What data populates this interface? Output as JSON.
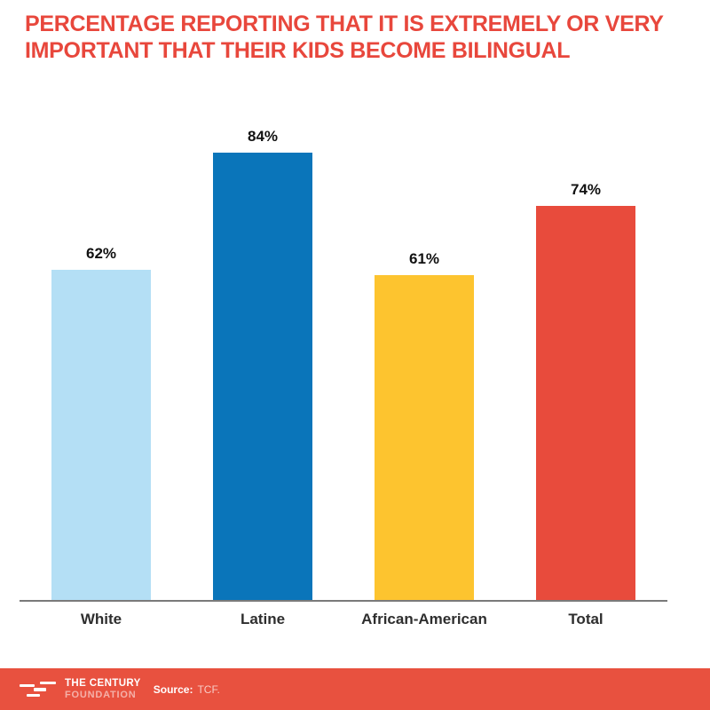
{
  "title": "PERCENTAGE REPORTING THAT IT IS EXTREMELY OR VERY IMPORTANT THAT THEIR KIDS BECOME BILINGUAL",
  "colors": {
    "title_red": "#e8473c",
    "axis_line": "#7a7a7a",
    "label_dark": "#2e2e2e",
    "footer_bg": "#e8513f",
    "bar_white": "#b4dff5",
    "bar_latine": "#0a75ba",
    "bar_african_american": "#fdc42f",
    "bar_total": "#e84b3c"
  },
  "chart_data": {
    "type": "bar",
    "title": "PERCENTAGE REPORTING THAT IT IS EXTREMELY OR VERY IMPORTANT THAT THEIR KIDS BECOME BILINGUAL",
    "categories": [
      "White",
      "Latine",
      "African-American",
      "Total"
    ],
    "values": [
      62,
      84,
      61,
      74
    ],
    "value_labels": [
      "62%",
      "84%",
      "61%",
      "74%"
    ],
    "bar_colors": [
      "#b4dff5",
      "#0a75ba",
      "#fdc42f",
      "#e84b3c"
    ],
    "xlabel": "",
    "ylabel": "",
    "ylim": [
      0,
      100
    ],
    "grid": false,
    "legend": false,
    "data_labels_position": "above-bar",
    "baseline_axis": "x"
  },
  "footer": {
    "org_name_line1": "THE CENTURY",
    "org_name_line2": "FOUNDATION",
    "source_label": "Source:",
    "source_value": "TCF."
  }
}
